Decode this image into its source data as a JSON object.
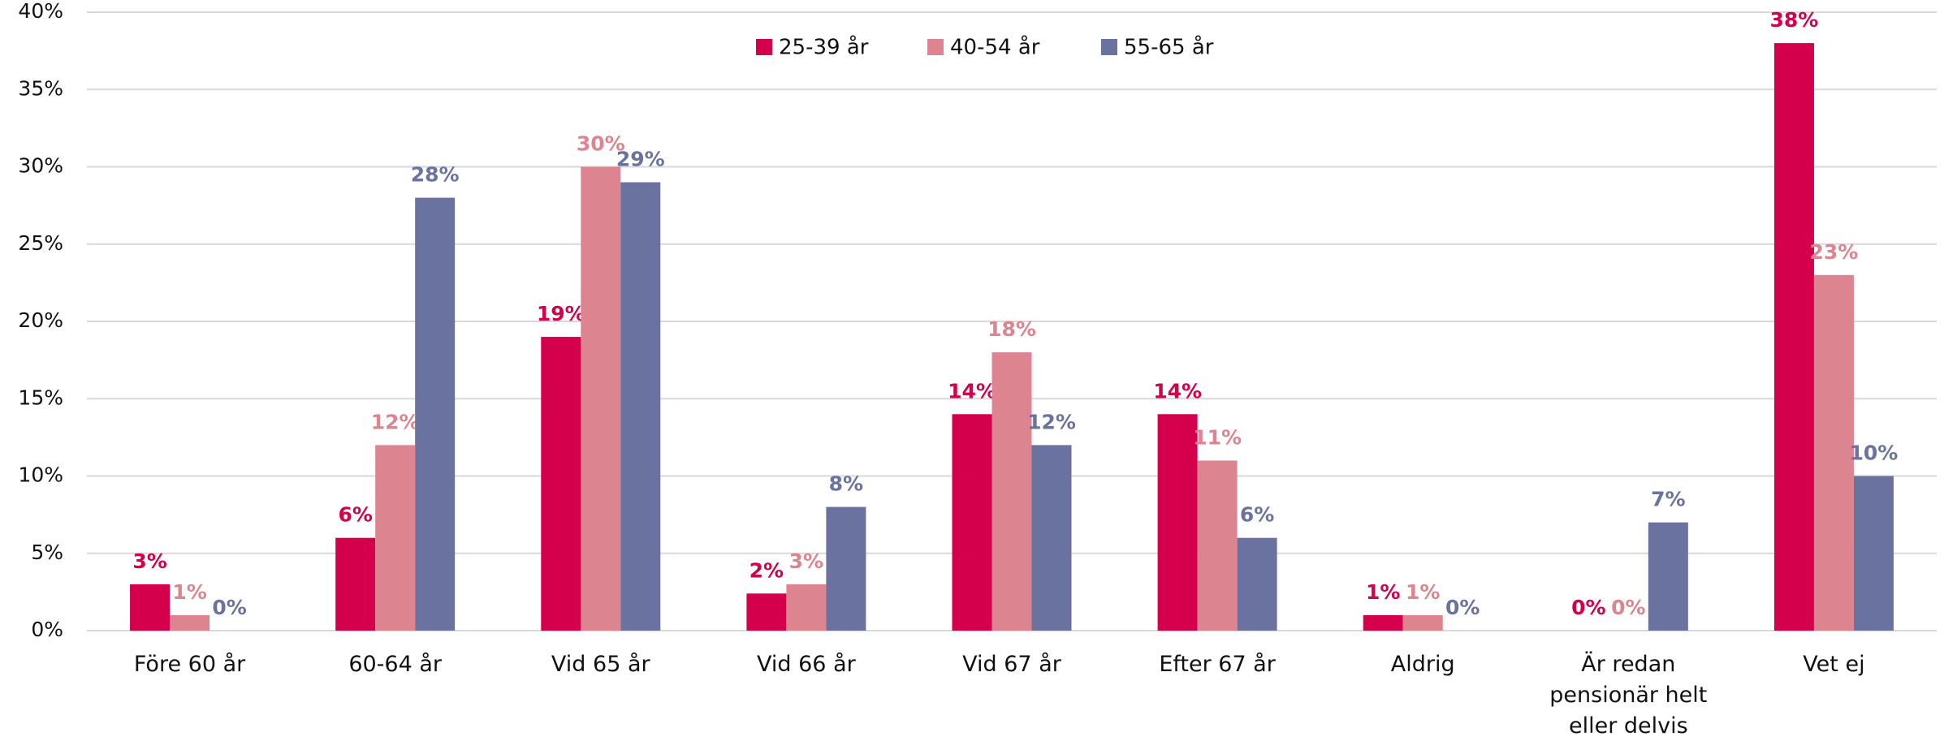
{
  "chart_data": {
    "type": "bar",
    "categories": [
      "Före 60 år",
      "60-64 år",
      "Vid 65 år",
      "Vid 66 år",
      "Vid 67 år",
      "Efter 67 år",
      "Aldrig",
      "Är redan pensionär helt eller delvis",
      "Vet ej"
    ],
    "series": [
      {
        "name": "25-39 år",
        "color": "#d4004c",
        "values": [
          3,
          6,
          19,
          2.4,
          14,
          14,
          1,
          0,
          38
        ],
        "value_labels": [
          "3%",
          "6%",
          "19%",
          "2%",
          "14%",
          "14%",
          "1%",
          "0%",
          "38%"
        ]
      },
      {
        "name": "40-54 år",
        "color": "#dc8590",
        "values": [
          1,
          12,
          30,
          3,
          18,
          11,
          1,
          0,
          23
        ],
        "value_labels": [
          "1%",
          "12%",
          "30%",
          "3%",
          "18%",
          "11%",
          "1%",
          "0%",
          "23%"
        ]
      },
      {
        "name": "55-65 år",
        "color": "#6a72a0",
        "values": [
          0,
          28,
          29,
          8,
          12,
          6,
          0,
          7,
          10
        ],
        "value_labels": [
          "0%",
          "28%",
          "29%",
          "8%",
          "12%",
          "6%",
          "0%",
          "7%",
          "10%"
        ]
      }
    ],
    "ylim": [
      0,
      40
    ],
    "yticks": [
      {
        "value": 0,
        "label": "0%"
      },
      {
        "value": 5,
        "label": "5%"
      },
      {
        "value": 10,
        "label": "10%"
      },
      {
        "value": 15,
        "label": "15%"
      },
      {
        "value": 20,
        "label": "20%"
      },
      {
        "value": 25,
        "label": "25%"
      },
      {
        "value": 30,
        "label": "30%"
      },
      {
        "value": 35,
        "label": "35%"
      },
      {
        "value": 40,
        "label": "40%"
      }
    ],
    "grid": true,
    "legend": "top"
  }
}
